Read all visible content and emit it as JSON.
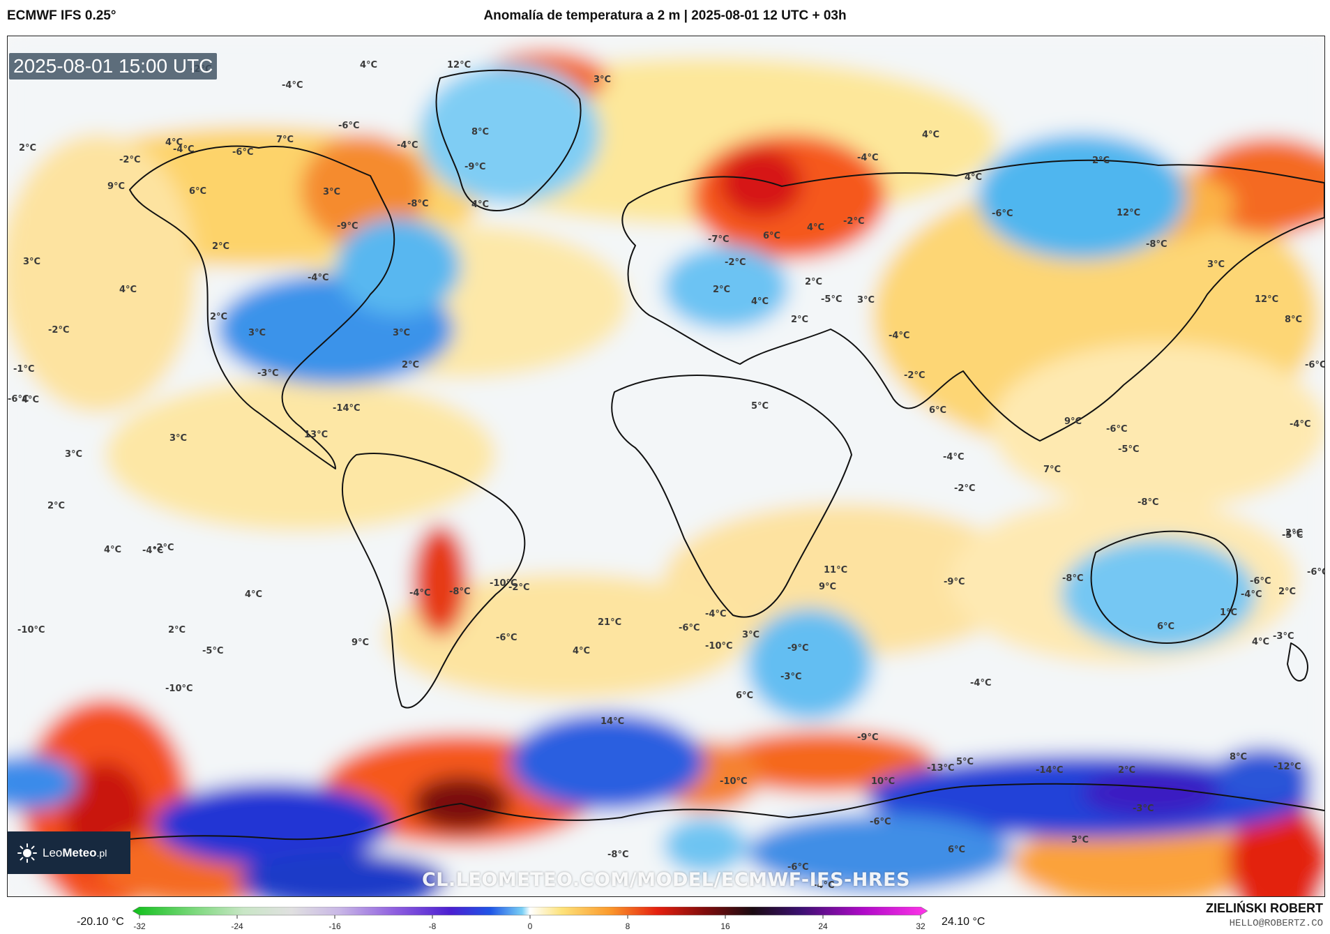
{
  "header": {
    "model": "ECMWF IFS 0.25°",
    "title": "Anomalía de temperatura a 2 m | 2025-08-01 12 UTC + 03h"
  },
  "map": {
    "valid_time": "2025-08-01 15:00 UTC",
    "brand": {
      "name_part1": "Leo",
      "name_part2": "Meteo",
      "suffix": ".pl"
    },
    "watermark_url": "CL.LEOMETEO.COM/MODEL/ECMWF-IFS-HRES",
    "anomaly_labels": [
      "-2°C",
      "12°C",
      "4°C",
      "-4°C",
      "-6°C",
      "4°C",
      "3°C",
      "9°C",
      "-6°C",
      "-4°C",
      "7°C",
      "8°C",
      "-9°C",
      "-4°C",
      "2°C",
      "-2°C",
      "6°C",
      "3°C",
      "-9°C",
      "-8°C",
      "4°C",
      "3°C",
      "4°C",
      "2°C",
      "-4°C",
      "-2°C",
      "2°C",
      "3°C",
      "3°C",
      "-1°C",
      "2°C",
      "-6°C",
      "-3°C",
      "4°C",
      "3°C",
      "13°C",
      "-14°C",
      "3°C",
      "2°C",
      "-2°C",
      "4°C",
      "-4°C",
      "5°C",
      "-2°C",
      "2°C",
      "4°C",
      "-4°C",
      "-8°C",
      "-10°C",
      "21°C",
      "-10°C",
      "-5°C",
      "9°C",
      "9°C",
      "-10°C",
      "11°C",
      "-4°C",
      "-10°C",
      "-9°C",
      "10°C",
      "-4°C",
      "-6°C",
      "4°C",
      "-6°C",
      "-3°C",
      "3°C",
      "6°C",
      "14°C",
      "-9°C",
      "-13°C",
      "-14°C",
      "2°C",
      "8°C",
      "-12°C",
      "-3°C",
      "3°C",
      "6°C",
      "-6°C",
      "-10°C",
      "-6°C",
      "-8°C",
      "5°C",
      "-9°C",
      "-4°C",
      "-8°C",
      "6°C",
      "-4°C",
      "1°C",
      "-6°C",
      "-6°C",
      "2°C",
      "4°C",
      "-3°C",
      "-8°C",
      "-6°C",
      "-5°C",
      "9°C",
      "7°C",
      "-2°C",
      "-4°C",
      "6°C",
      "-2°C",
      "-4°C",
      "3°C",
      "2°C",
      "-5°C",
      "2°C",
      "4°C",
      "2°C",
      "-2°C",
      "-7°C",
      "6°C",
      "4°C",
      "-2°C",
      "-4°C",
      "4°C",
      "4°C",
      "-6°C",
      "2°C",
      "12°C",
      "-8°C",
      "3°C",
      "12°C",
      "8°C",
      "-6°C",
      "-4°C",
      "2°C",
      "-5°C",
      "-6°C",
      "2°C",
      "-3°C",
      "4°C"
    ]
  },
  "colorbar": {
    "min_label": "-20.10 °C",
    "max_label": "24.10 °C",
    "ticks": [
      "-32",
      "-24",
      "-16",
      "-8",
      "0",
      "8",
      "16",
      "24",
      "32"
    ]
  },
  "credits": {
    "author": "ZIELIŃSKI ROBERT",
    "email": "HELLO@ROBERTZ.CO"
  }
}
